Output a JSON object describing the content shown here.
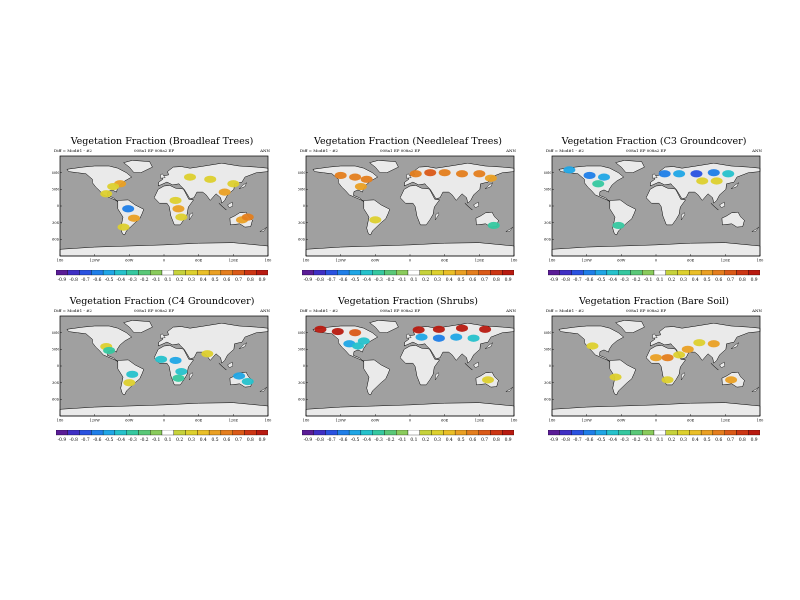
{
  "colorbar": {
    "labels": [
      "-0.9",
      "-0.8",
      "-0.7",
      "-0.6",
      "-0.5",
      "-0.4",
      "-0.3",
      "-0.2",
      "-0.1",
      "0.1",
      "0.2",
      "0.3",
      "0.4",
      "0.5",
      "0.6",
      "0.7",
      "0.8",
      "0.9"
    ],
    "colors": [
      "#5a1c96",
      "#3f2fc4",
      "#2a52e0",
      "#1f7ee8",
      "#20a6e6",
      "#26c2cc",
      "#36c8a0",
      "#5ac878",
      "#8acb5c",
      "#ffffff",
      "#c6d23c",
      "#ddd02e",
      "#eabf28",
      "#eaa024",
      "#e47e1e",
      "#da5a18",
      "#cc3614",
      "#b81a10"
    ]
  },
  "axes": {
    "lat_ticks": [
      "60N",
      "30N",
      "0",
      "30S",
      "60S"
    ],
    "lon_ticks": [
      "180",
      "120W",
      "60W",
      "0",
      "60E",
      "120E",
      "180"
    ]
  },
  "chart_data": [
    {
      "type": "heatmap",
      "title": "Vegetation Fraction (Broadleaf Trees)",
      "subtitle_left": "Diff = Mod#1 - #2",
      "subtitle_mid": "008a1 EP  008a2 EP",
      "subtitle_right": "ANN",
      "xlabel": "Longitude",
      "ylabel": "Latitude",
      "xlim": [
        -180,
        180
      ],
      "ylim": [
        -90,
        90
      ],
      "colorbar_range": [
        -0.9,
        0.9
      ],
      "regions": [
        {
          "lon": -76,
          "lat": 40,
          "value": 0.4
        },
        {
          "lon": -88,
          "lat": 35,
          "value": 0.3
        },
        {
          "lon": -100,
          "lat": 22,
          "value": 0.2
        },
        {
          "lon": -62,
          "lat": -5,
          "value": -0.6
        },
        {
          "lon": -52,
          "lat": -22,
          "value": 0.4
        },
        {
          "lon": -70,
          "lat": -38,
          "value": 0.2
        },
        {
          "lon": 20,
          "lat": 10,
          "value": 0.3
        },
        {
          "lon": 25,
          "lat": -5,
          "value": 0.4
        },
        {
          "lon": 30,
          "lat": -20,
          "value": 0.3
        },
        {
          "lon": 45,
          "lat": 52,
          "value": 0.3
        },
        {
          "lon": 80,
          "lat": 48,
          "value": 0.2
        },
        {
          "lon": 105,
          "lat": 25,
          "value": 0.4
        },
        {
          "lon": 120,
          "lat": 40,
          "value": 0.3
        },
        {
          "lon": 135,
          "lat": -25,
          "value": 0.4
        },
        {
          "lon": 145,
          "lat": -20,
          "value": 0.5
        }
      ]
    },
    {
      "type": "heatmap",
      "title": "Vegetation Fraction (Needleleaf Trees)",
      "subtitle_left": "Diff = Mod#1 - #2",
      "subtitle_mid": "008a1 EP  008a2 EP",
      "subtitle_right": "ANN",
      "xlabel": "Longitude",
      "ylabel": "Latitude",
      "xlim": [
        -180,
        180
      ],
      "ylim": [
        -90,
        90
      ],
      "colorbar_range": [
        -0.9,
        0.9
      ],
      "regions": [
        {
          "lon": -120,
          "lat": 55,
          "value": 0.5
        },
        {
          "lon": -95,
          "lat": 52,
          "value": 0.6
        },
        {
          "lon": -75,
          "lat": 48,
          "value": 0.5
        },
        {
          "lon": -85,
          "lat": 35,
          "value": 0.4
        },
        {
          "lon": 10,
          "lat": 58,
          "value": 0.6
        },
        {
          "lon": 35,
          "lat": 60,
          "value": 0.7
        },
        {
          "lon": 60,
          "lat": 60,
          "value": 0.6
        },
        {
          "lon": 90,
          "lat": 58,
          "value": 0.6
        },
        {
          "lon": 120,
          "lat": 58,
          "value": 0.5
        },
        {
          "lon": 140,
          "lat": 50,
          "value": 0.4
        },
        {
          "lon": -60,
          "lat": -25,
          "value": 0.3
        },
        {
          "lon": 145,
          "lat": -35,
          "value": -0.3
        }
      ]
    },
    {
      "type": "heatmap",
      "title": "Vegetation Fraction (C3 Groundcover)",
      "subtitle_left": "Diff = Mod#1 - #2",
      "subtitle_mid": "008a1 EP  008a2 EP",
      "subtitle_right": "ANN",
      "xlabel": "Longitude",
      "ylabel": "Latitude",
      "xlim": [
        -180,
        180
      ],
      "ylim": [
        -90,
        90
      ],
      "colorbar_range": [
        -0.9,
        0.9
      ],
      "regions": [
        {
          "lon": -150,
          "lat": 65,
          "value": -0.5
        },
        {
          "lon": -115,
          "lat": 55,
          "value": -0.6
        },
        {
          "lon": -90,
          "lat": 52,
          "value": -0.5
        },
        {
          "lon": -100,
          "lat": 40,
          "value": -0.3
        },
        {
          "lon": 15,
          "lat": 58,
          "value": -0.6
        },
        {
          "lon": 40,
          "lat": 58,
          "value": -0.5
        },
        {
          "lon": 70,
          "lat": 58,
          "value": -0.7
        },
        {
          "lon": 100,
          "lat": 60,
          "value": -0.6
        },
        {
          "lon": 125,
          "lat": 58,
          "value": -0.4
        },
        {
          "lon": 80,
          "lat": 45,
          "value": 0.2
        },
        {
          "lon": 105,
          "lat": 45,
          "value": 0.3
        },
        {
          "lon": -65,
          "lat": -35,
          "value": -0.3
        }
      ]
    },
    {
      "type": "heatmap",
      "title": "Vegetation Fraction (C4 Groundcover)",
      "subtitle_left": "Diff = Mod#1 - #2",
      "subtitle_mid": "008a1 EP  008a2 EP",
      "subtitle_right": "ANN",
      "xlabel": "Longitude",
      "ylabel": "Latitude",
      "xlim": [
        -180,
        180
      ],
      "ylim": [
        -90,
        90
      ],
      "colorbar_range": [
        -0.9,
        0.9
      ],
      "regions": [
        {
          "lon": -100,
          "lat": 35,
          "value": 0.3
        },
        {
          "lon": -95,
          "lat": 28,
          "value": -0.3
        },
        {
          "lon": -55,
          "lat": -15,
          "value": -0.4
        },
        {
          "lon": -60,
          "lat": -30,
          "value": 0.3
        },
        {
          "lon": -5,
          "lat": 12,
          "value": -0.4
        },
        {
          "lon": 20,
          "lat": 10,
          "value": -0.5
        },
        {
          "lon": 30,
          "lat": -10,
          "value": -0.4
        },
        {
          "lon": 25,
          "lat": -22,
          "value": -0.3
        },
        {
          "lon": 75,
          "lat": 22,
          "value": 0.3
        },
        {
          "lon": 130,
          "lat": -18,
          "value": -0.5
        },
        {
          "lon": 145,
          "lat": -28,
          "value": -0.4
        }
      ]
    },
    {
      "type": "heatmap",
      "title": "Vegetation Fraction (Shrubs)",
      "subtitle_left": "Diff = Mod#1 - #2",
      "subtitle_mid": "008a1 EP  008a2 EP",
      "subtitle_right": "ANN",
      "xlabel": "Longitude",
      "ylabel": "Latitude",
      "xlim": [
        -180,
        180
      ],
      "ylim": [
        -90,
        90
      ],
      "colorbar_range": [
        -0.9,
        0.9
      ],
      "regions": [
        {
          "lon": -155,
          "lat": 66,
          "value": 0.8
        },
        {
          "lon": -125,
          "lat": 62,
          "value": 0.9
        },
        {
          "lon": -95,
          "lat": 60,
          "value": 0.7
        },
        {
          "lon": -105,
          "lat": 40,
          "value": -0.5
        },
        {
          "lon": -90,
          "lat": 36,
          "value": -0.4
        },
        {
          "lon": -80,
          "lat": 45,
          "value": -0.4
        },
        {
          "lon": 15,
          "lat": 65,
          "value": 0.8
        },
        {
          "lon": 50,
          "lat": 66,
          "value": 0.9
        },
        {
          "lon": 90,
          "lat": 68,
          "value": 0.9
        },
        {
          "lon": 130,
          "lat": 66,
          "value": 0.8
        },
        {
          "lon": 20,
          "lat": 52,
          "value": -0.5
        },
        {
          "lon": 50,
          "lat": 50,
          "value": -0.6
        },
        {
          "lon": 80,
          "lat": 52,
          "value": -0.5
        },
        {
          "lon": 110,
          "lat": 50,
          "value": -0.4
        },
        {
          "lon": 135,
          "lat": -25,
          "value": 0.3
        }
      ]
    },
    {
      "type": "heatmap",
      "title": "Vegetation Fraction (Bare Soil)",
      "subtitle_left": "Diff = Mod#1 - #2",
      "subtitle_mid": "008a1 EP  008a2 EP",
      "subtitle_right": "ANN",
      "xlabel": "Longitude",
      "ylabel": "Latitude",
      "xlim": [
        -180,
        180
      ],
      "ylim": [
        -90,
        90
      ],
      "colorbar_range": [
        -0.9,
        0.9
      ],
      "regions": [
        {
          "lon": -110,
          "lat": 36,
          "value": 0.3
        },
        {
          "lon": -70,
          "lat": -20,
          "value": 0.3
        },
        {
          "lon": 0,
          "lat": 15,
          "value": 0.4
        },
        {
          "lon": 20,
          "lat": 15,
          "value": 0.5
        },
        {
          "lon": 40,
          "lat": 20,
          "value": 0.3
        },
        {
          "lon": 55,
          "lat": 30,
          "value": 0.4
        },
        {
          "lon": 75,
          "lat": 42,
          "value": 0.3
        },
        {
          "lon": 100,
          "lat": 40,
          "value": 0.4
        },
        {
          "lon": 20,
          "lat": -25,
          "value": 0.3
        },
        {
          "lon": 130,
          "lat": -25,
          "value": 0.4
        }
      ]
    }
  ]
}
